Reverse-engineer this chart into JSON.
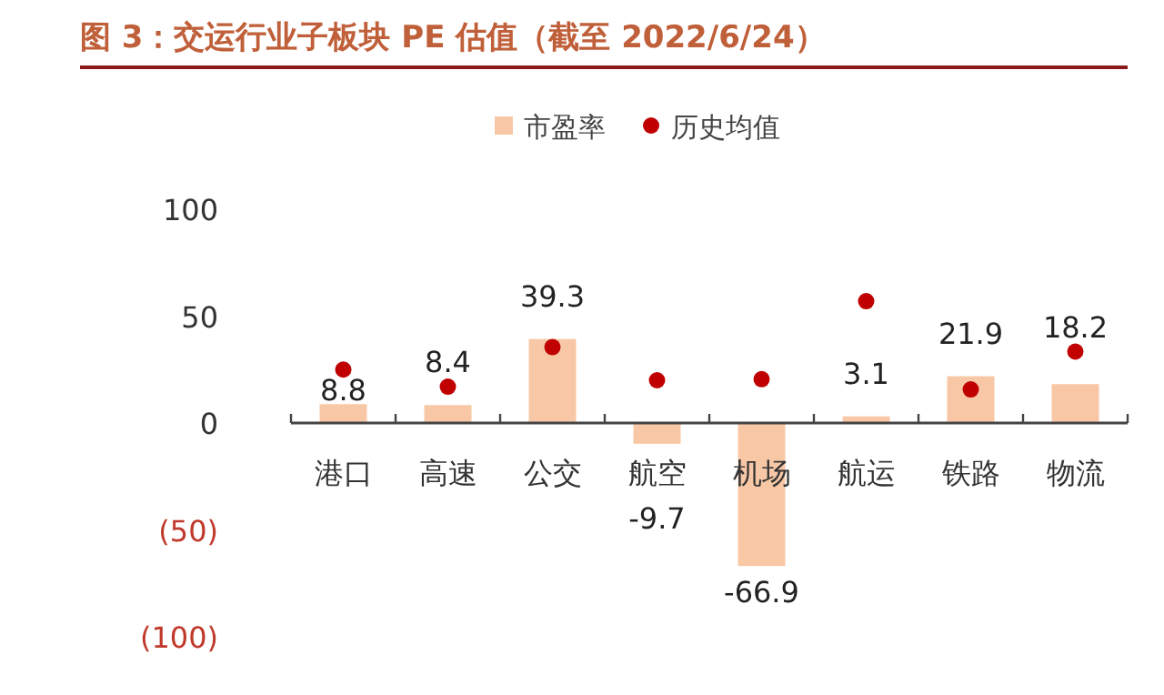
{
  "chart_data": {
    "type": "bar",
    "title": "图 3：交运行业子板块 PE 估值（截至 2022/6/24）",
    "categories": [
      "港口",
      "高速",
      "公交",
      "航空",
      "机场",
      "航运",
      "铁路",
      "物流"
    ],
    "series": [
      {
        "name": "市盈率",
        "color": "#f8c8a6",
        "values": [
          8.8,
          8.4,
          39.3,
          -9.7,
          -66.9,
          3.1,
          21.9,
          18.2
        ],
        "value_labels": [
          "8.8",
          "8.4",
          "39.3",
          "-9.7",
          "-66.9",
          "3.1",
          "21.9",
          "18.2"
        ]
      },
      {
        "name": "历史均值",
        "type": "scatter",
        "marker": "circle",
        "color": "#c00000",
        "x": [
          "港口",
          "高速",
          "公交",
          "航空",
          "机场",
          "航运",
          "铁路",
          "物流"
        ],
        "values": [
          25,
          17,
          35.5,
          20,
          20.5,
          57,
          15.7,
          33.4
        ]
      }
    ],
    "ylim": [
      -100,
      100
    ],
    "yticks": [
      100,
      50,
      0,
      {
        "value": -50,
        "label": "(50)"
      },
      {
        "value": -100,
        "label": "(100)"
      }
    ],
    "legend": "top",
    "grid": false
  }
}
